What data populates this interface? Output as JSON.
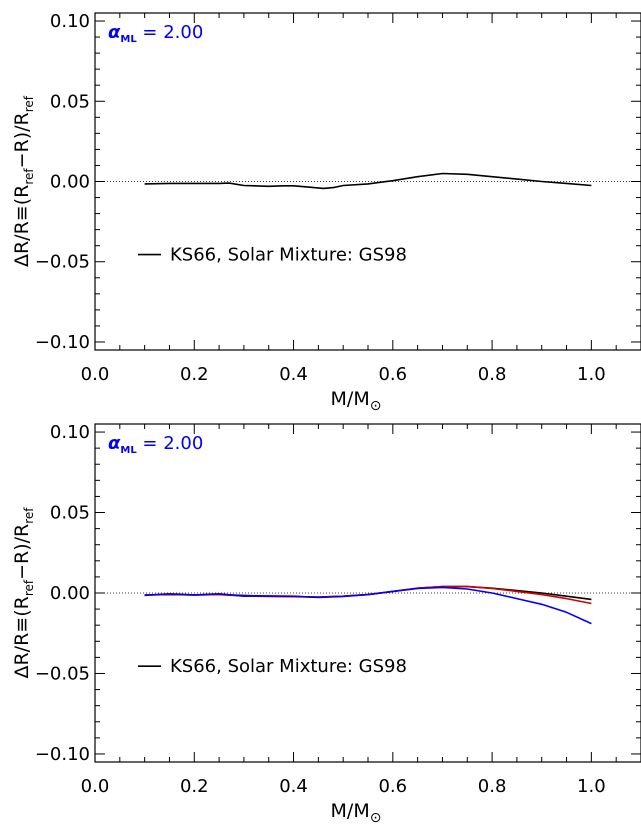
{
  "chart_data": [
    {
      "type": "line",
      "alpha_label": {
        "symbol": "α",
        "subscript": "ML",
        "value_text": "= 2.00",
        "color": "#0000ff"
      },
      "ylabel": "ΔR/R≡(R_ref−R)/R_ref",
      "xlabel": "M/M⊙",
      "xlim": [
        0.0,
        1.1
      ],
      "ylim": [
        -0.105,
        0.105
      ],
      "x_ticks": [
        "0.0",
        "0.2",
        "0.4",
        "0.6",
        "0.8",
        "1.0"
      ],
      "y_ticks": [
        "0.10",
        "0.05",
        "0.00",
        "−0.05",
        "−0.10"
      ],
      "reference_line": {
        "y": 0.0,
        "style": "dotted"
      },
      "legend": {
        "placement": "lower-left",
        "entries": [
          "KS66, Solar Mixture: GS98"
        ]
      },
      "series": [
        {
          "name": "KS66, Solar Mixture: GS98",
          "color": "#000000",
          "x": [
            0.1,
            0.15,
            0.2,
            0.25,
            0.27,
            0.3,
            0.35,
            0.38,
            0.4,
            0.43,
            0.46,
            0.48,
            0.5,
            0.55,
            0.6,
            0.65,
            0.7,
            0.75,
            0.8,
            0.85,
            0.9,
            0.95,
            1.0
          ],
          "y": [
            -0.0015,
            -0.0012,
            -0.0012,
            -0.0012,
            -0.001,
            -0.0025,
            -0.003,
            -0.0027,
            -0.0027,
            -0.0035,
            -0.0043,
            -0.0038,
            -0.0025,
            -0.0015,
            0.0005,
            0.003,
            0.005,
            0.0045,
            0.003,
            0.0015,
            0.0,
            -0.0012,
            -0.0025
          ]
        }
      ]
    },
    {
      "type": "line",
      "alpha_label": {
        "symbol": "α",
        "subscript": "ML",
        "value_text": "= 2.00",
        "color": "#0000ff"
      },
      "ylabel": "ΔR/R≡(R_ref−R)/R_ref",
      "xlabel": "M/M⊙",
      "xlim": [
        0.0,
        1.1
      ],
      "ylim": [
        -0.105,
        0.105
      ],
      "x_ticks": [
        "0.0",
        "0.2",
        "0.4",
        "0.6",
        "0.8",
        "1.0"
      ],
      "y_ticks": [
        "0.10",
        "0.05",
        "0.00",
        "−0.05",
        "−0.10"
      ],
      "reference_line": {
        "y": 0.0,
        "style": "dotted"
      },
      "legend": {
        "placement": "lower-left",
        "entries": [
          "KS66, Solar Mixture: GS98"
        ]
      },
      "series": [
        {
          "name": "KS66, Solar Mixture: GS98",
          "color": "#000000",
          "x": [
            0.1,
            0.15,
            0.2,
            0.25,
            0.3,
            0.35,
            0.4,
            0.45,
            0.5,
            0.55,
            0.6,
            0.65,
            0.7,
            0.75,
            0.8,
            0.85,
            0.9,
            0.95,
            1.0
          ],
          "y": [
            -0.0012,
            -0.001,
            -0.0012,
            -0.001,
            -0.0015,
            -0.002,
            -0.0022,
            -0.0025,
            -0.002,
            -0.001,
            0.001,
            0.003,
            0.004,
            0.004,
            0.003,
            0.0015,
            0.0,
            -0.002,
            -0.004
          ]
        },
        {
          "color": "#d40000",
          "x": [
            0.1,
            0.15,
            0.2,
            0.25,
            0.3,
            0.35,
            0.4,
            0.45,
            0.5,
            0.55,
            0.6,
            0.65,
            0.7,
            0.75,
            0.8,
            0.85,
            0.9,
            0.95,
            1.0
          ],
          "y": [
            -0.0012,
            -0.0008,
            -0.0012,
            -0.001,
            -0.0018,
            -0.0022,
            -0.0023,
            -0.0026,
            -0.002,
            -0.001,
            0.001,
            0.003,
            0.004,
            0.004,
            0.0028,
            0.001,
            -0.001,
            -0.0035,
            -0.0065
          ]
        },
        {
          "color": "#0000ff",
          "x": [
            0.1,
            0.15,
            0.2,
            0.25,
            0.3,
            0.35,
            0.4,
            0.45,
            0.5,
            0.55,
            0.6,
            0.65,
            0.7,
            0.75,
            0.8,
            0.85,
            0.9,
            0.95,
            1.0
          ],
          "y": [
            -0.0015,
            -0.0005,
            -0.0012,
            -0.0005,
            -0.002,
            -0.0018,
            -0.002,
            -0.0028,
            -0.0022,
            -0.001,
            0.001,
            0.0028,
            0.0035,
            0.0025,
            0.0,
            -0.0035,
            -0.007,
            -0.012,
            -0.019
          ]
        }
      ]
    }
  ]
}
